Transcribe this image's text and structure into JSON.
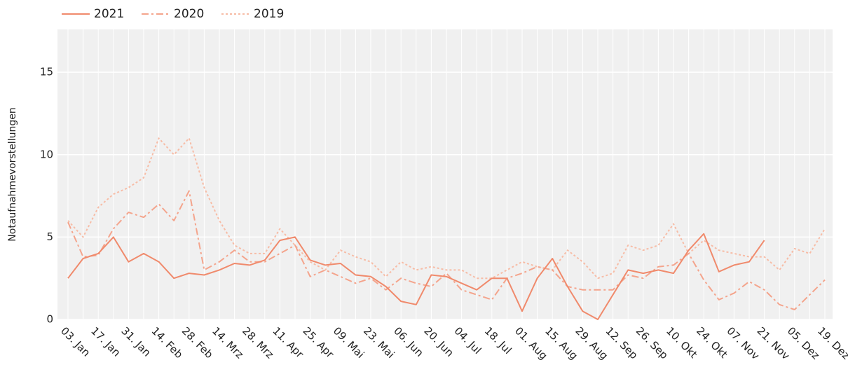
{
  "chart_data": {
    "type": "line",
    "y_label": "Notaufnahmevorstellungen",
    "categories": [
      "03. Jan",
      null,
      "17. Jan",
      null,
      "31. Jan",
      null,
      "14. Feb",
      null,
      "28. Feb",
      null,
      "14. Mrz",
      null,
      "28. Mrz",
      null,
      "11. Apr",
      null,
      "25. Apr",
      null,
      "09. Mai",
      null,
      "23. Mai",
      null,
      "06. Jun",
      null,
      "20. Jun",
      null,
      "04. Jul",
      null,
      "18. Jul",
      null,
      "01. Aug",
      null,
      "15. Aug",
      null,
      "29. Aug",
      null,
      "12. Sep",
      null,
      "26. Sep",
      null,
      "10. Okt",
      null,
      "24. Okt",
      null,
      "07. Nov",
      null,
      "21. Nov",
      null,
      "05. Dez",
      null,
      "19. Dez"
    ],
    "series": [
      {
        "name": "2021",
        "color": "#f08a6c",
        "dash": "solid",
        "values": [
          2.5,
          3.7,
          4.0,
          5.0,
          3.5,
          4.0,
          3.5,
          2.5,
          2.8,
          2.7,
          3.0,
          3.4,
          3.3,
          3.6,
          4.8,
          5.0,
          3.6,
          3.3,
          3.4,
          2.7,
          2.6,
          2.0,
          1.1,
          0.9,
          2.7,
          2.6,
          2.2,
          1.8,
          2.5,
          2.5,
          0.5,
          2.5,
          3.7,
          2.0,
          0.5,
          0,
          1.5,
          3.0,
          2.8,
          3.0,
          2.8,
          4.2,
          5.2,
          2.9,
          3.3,
          3.5,
          4.8,
          null,
          null,
          null,
          null
        ]
      },
      {
        "name": "2020",
        "color": "#f4a48c",
        "dash": "dashdot",
        "values": [
          5.9,
          3.8,
          3.9,
          5.5,
          6.5,
          6.2,
          7.0,
          6.0,
          7.8,
          3.0,
          3.5,
          4.2,
          3.5,
          3.5,
          4.0,
          4.5,
          2.6,
          3.0,
          2.6,
          2.2,
          2.5,
          1.8,
          2.5,
          2.2,
          2.0,
          2.8,
          1.8,
          1.5,
          1.2,
          2.5,
          2.8,
          3.2,
          3.0,
          2.0,
          1.8,
          1.8,
          1.8,
          2.7,
          2.5,
          3.2,
          3.3,
          4.0,
          2.4,
          1.2,
          1.6,
          2.3,
          1.8,
          0.9,
          0.6,
          1.5,
          2.4
        ]
      },
      {
        "name": "2019",
        "color": "#f7bca6",
        "dash": "dot",
        "values": [
          6.0,
          5.0,
          6.8,
          7.6,
          8.0,
          8.6,
          11.0,
          10.0,
          11.0,
          8.0,
          6.0,
          4.5,
          4.0,
          4.0,
          5.5,
          4.5,
          3.5,
          3.0,
          4.2,
          3.8,
          3.5,
          2.6,
          3.5,
          3.0,
          3.2,
          3.0,
          3.0,
          2.5,
          2.5,
          3.0,
          3.5,
          3.2,
          3.0,
          4.2,
          3.5,
          2.5,
          2.8,
          4.5,
          4.2,
          4.5,
          5.8,
          4.0,
          4.8,
          4.2,
          4.0,
          3.8,
          3.8,
          3.0,
          4.3,
          4.0,
          5.5
        ]
      }
    ],
    "ylim": [
      0,
      17.6
    ],
    "yticks": [
      0,
      5,
      10,
      15
    ],
    "grid": true,
    "legend": "top-left"
  }
}
